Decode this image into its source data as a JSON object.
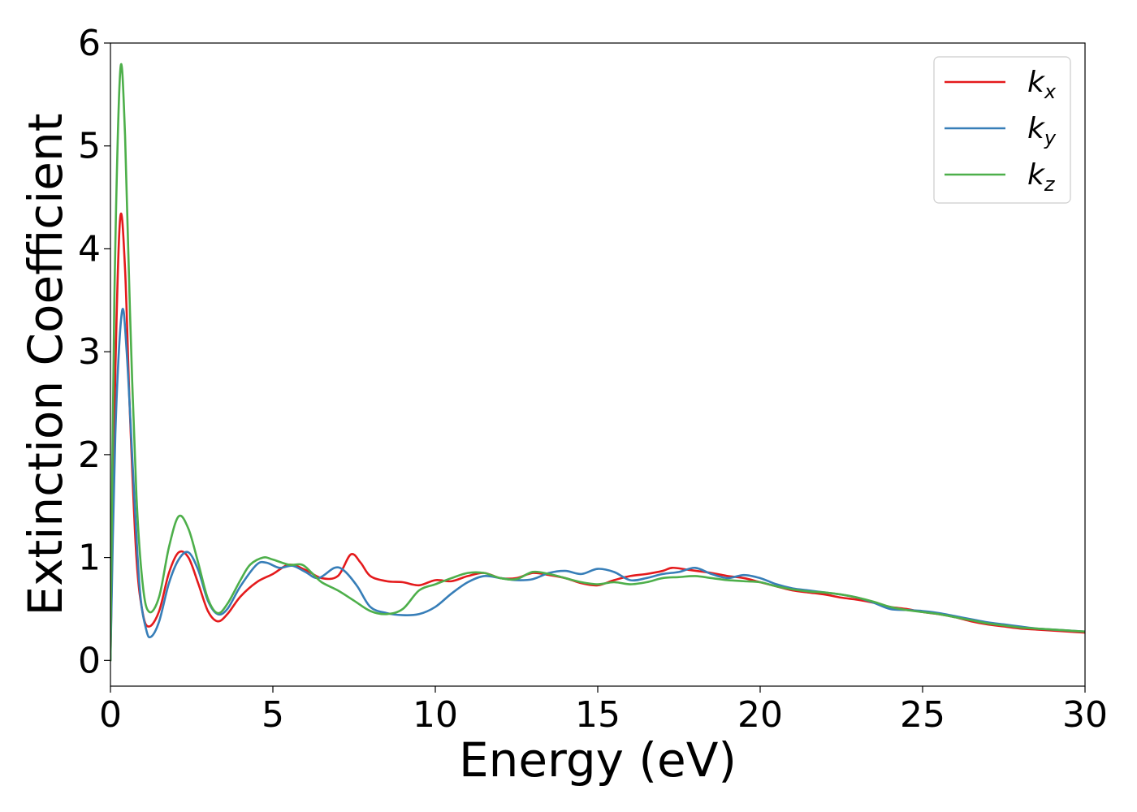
{
  "chart_data": {
    "type": "line",
    "title": "",
    "xlabel": "Energy (eV)",
    "ylabel": "Extinction Coefficient",
    "xlim": [
      0,
      30
    ],
    "ylim": [
      -0.25,
      6
    ],
    "xticks": [
      0,
      5,
      10,
      15,
      20,
      25,
      30
    ],
    "yticks": [
      0,
      1,
      2,
      3,
      4,
      5,
      6
    ],
    "grid": false,
    "legend_position": "top-right",
    "series": [
      {
        "name": "k_x",
        "label_base": "k",
        "label_sub": "x",
        "color": "#e41a1c",
        "points": [
          [
            0,
            0
          ],
          [
            0.15,
            2.8
          ],
          [
            0.3,
            4.3
          ],
          [
            0.45,
            3.8
          ],
          [
            0.6,
            2.4
          ],
          [
            0.8,
            1.0
          ],
          [
            1.0,
            0.45
          ],
          [
            1.2,
            0.33
          ],
          [
            1.5,
            0.48
          ],
          [
            1.8,
            0.85
          ],
          [
            2.1,
            1.05
          ],
          [
            2.4,
            1.0
          ],
          [
            2.7,
            0.75
          ],
          [
            3.0,
            0.48
          ],
          [
            3.3,
            0.38
          ],
          [
            3.6,
            0.45
          ],
          [
            4.0,
            0.62
          ],
          [
            4.5,
            0.76
          ],
          [
            5.0,
            0.84
          ],
          [
            5.5,
            0.93
          ],
          [
            6.0,
            0.88
          ],
          [
            6.5,
            0.8
          ],
          [
            7.0,
            0.82
          ],
          [
            7.4,
            1.03
          ],
          [
            7.7,
            0.95
          ],
          [
            8.0,
            0.82
          ],
          [
            8.5,
            0.77
          ],
          [
            9.0,
            0.76
          ],
          [
            9.5,
            0.73
          ],
          [
            10.0,
            0.78
          ],
          [
            10.5,
            0.77
          ],
          [
            11.0,
            0.82
          ],
          [
            11.5,
            0.85
          ],
          [
            12.0,
            0.8
          ],
          [
            12.5,
            0.8
          ],
          [
            13.0,
            0.85
          ],
          [
            13.5,
            0.83
          ],
          [
            14.0,
            0.8
          ],
          [
            14.5,
            0.75
          ],
          [
            15.0,
            0.73
          ],
          [
            15.5,
            0.78
          ],
          [
            16.0,
            0.82
          ],
          [
            16.5,
            0.84
          ],
          [
            17.0,
            0.87
          ],
          [
            17.3,
            0.9
          ],
          [
            17.8,
            0.88
          ],
          [
            18.5,
            0.85
          ],
          [
            19.0,
            0.82
          ],
          [
            19.5,
            0.8
          ],
          [
            20.0,
            0.76
          ],
          [
            20.5,
            0.72
          ],
          [
            21.0,
            0.68
          ],
          [
            21.5,
            0.66
          ],
          [
            22.0,
            0.64
          ],
          [
            22.5,
            0.61
          ],
          [
            23.0,
            0.59
          ],
          [
            23.5,
            0.56
          ],
          [
            24.0,
            0.52
          ],
          [
            24.5,
            0.5
          ],
          [
            25.0,
            0.47
          ],
          [
            25.5,
            0.45
          ],
          [
            26.0,
            0.42
          ],
          [
            26.5,
            0.38
          ],
          [
            27.0,
            0.35
          ],
          [
            27.5,
            0.33
          ],
          [
            28.0,
            0.31
          ],
          [
            28.5,
            0.3
          ],
          [
            29.0,
            0.29
          ],
          [
            29.5,
            0.28
          ],
          [
            30.0,
            0.27
          ]
        ]
      },
      {
        "name": "k_y",
        "label_base": "k",
        "label_sub": "y",
        "color": "#377eb8",
        "points": [
          [
            0,
            0
          ],
          [
            0.15,
            2.2
          ],
          [
            0.35,
            3.38
          ],
          [
            0.5,
            3.0
          ],
          [
            0.7,
            1.8
          ],
          [
            0.9,
            0.7
          ],
          [
            1.1,
            0.3
          ],
          [
            1.25,
            0.23
          ],
          [
            1.5,
            0.38
          ],
          [
            1.8,
            0.75
          ],
          [
            2.1,
            0.98
          ],
          [
            2.4,
            1.05
          ],
          [
            2.7,
            0.88
          ],
          [
            3.0,
            0.58
          ],
          [
            3.3,
            0.45
          ],
          [
            3.6,
            0.5
          ],
          [
            4.0,
            0.72
          ],
          [
            4.5,
            0.93
          ],
          [
            4.8,
            0.95
          ],
          [
            5.2,
            0.9
          ],
          [
            5.6,
            0.92
          ],
          [
            6.0,
            0.86
          ],
          [
            6.4,
            0.8
          ],
          [
            6.9,
            0.9
          ],
          [
            7.2,
            0.87
          ],
          [
            7.6,
            0.72
          ],
          [
            8.0,
            0.52
          ],
          [
            8.5,
            0.46
          ],
          [
            9.0,
            0.44
          ],
          [
            9.5,
            0.45
          ],
          [
            10.0,
            0.52
          ],
          [
            10.5,
            0.65
          ],
          [
            11.0,
            0.76
          ],
          [
            11.5,
            0.82
          ],
          [
            12.0,
            0.8
          ],
          [
            12.5,
            0.78
          ],
          [
            13.0,
            0.79
          ],
          [
            13.5,
            0.85
          ],
          [
            14.0,
            0.87
          ],
          [
            14.5,
            0.84
          ],
          [
            15.0,
            0.89
          ],
          [
            15.5,
            0.86
          ],
          [
            16.0,
            0.78
          ],
          [
            16.5,
            0.8
          ],
          [
            17.0,
            0.84
          ],
          [
            17.5,
            0.86
          ],
          [
            18.0,
            0.9
          ],
          [
            18.5,
            0.84
          ],
          [
            19.0,
            0.8
          ],
          [
            19.5,
            0.83
          ],
          [
            20.0,
            0.8
          ],
          [
            20.5,
            0.74
          ],
          [
            21.0,
            0.7
          ],
          [
            21.5,
            0.68
          ],
          [
            22.0,
            0.66
          ],
          [
            22.5,
            0.64
          ],
          [
            23.0,
            0.61
          ],
          [
            23.5,
            0.56
          ],
          [
            24.0,
            0.5
          ],
          [
            24.5,
            0.49
          ],
          [
            25.0,
            0.48
          ],
          [
            25.5,
            0.46
          ],
          [
            26.0,
            0.43
          ],
          [
            26.5,
            0.4
          ],
          [
            27.0,
            0.37
          ],
          [
            27.5,
            0.35
          ],
          [
            28.0,
            0.33
          ],
          [
            28.5,
            0.31
          ],
          [
            29.0,
            0.3
          ],
          [
            29.5,
            0.29
          ],
          [
            30.0,
            0.28
          ]
        ]
      },
      {
        "name": "k_z",
        "label_base": "k",
        "label_sub": "z",
        "color": "#4daf4a",
        "points": [
          [
            0,
            0
          ],
          [
            0.12,
            3.5
          ],
          [
            0.3,
            5.72
          ],
          [
            0.45,
            5.1
          ],
          [
            0.6,
            3.4
          ],
          [
            0.8,
            1.6
          ],
          [
            1.0,
            0.72
          ],
          [
            1.2,
            0.47
          ],
          [
            1.5,
            0.62
          ],
          [
            1.8,
            1.1
          ],
          [
            2.1,
            1.4
          ],
          [
            2.4,
            1.28
          ],
          [
            2.7,
            0.95
          ],
          [
            3.0,
            0.6
          ],
          [
            3.3,
            0.46
          ],
          [
            3.6,
            0.55
          ],
          [
            4.0,
            0.78
          ],
          [
            4.3,
            0.93
          ],
          [
            4.7,
            1.0
          ],
          [
            5.0,
            0.98
          ],
          [
            5.5,
            0.93
          ],
          [
            5.9,
            0.93
          ],
          [
            6.2,
            0.85
          ],
          [
            6.5,
            0.76
          ],
          [
            7.0,
            0.68
          ],
          [
            7.5,
            0.58
          ],
          [
            8.0,
            0.48
          ],
          [
            8.5,
            0.45
          ],
          [
            9.0,
            0.5
          ],
          [
            9.5,
            0.68
          ],
          [
            10.0,
            0.74
          ],
          [
            10.5,
            0.8
          ],
          [
            11.0,
            0.85
          ],
          [
            11.5,
            0.85
          ],
          [
            12.0,
            0.8
          ],
          [
            12.5,
            0.79
          ],
          [
            13.0,
            0.86
          ],
          [
            13.5,
            0.84
          ],
          [
            14.0,
            0.8
          ],
          [
            14.5,
            0.76
          ],
          [
            15.0,
            0.74
          ],
          [
            15.5,
            0.76
          ],
          [
            16.0,
            0.74
          ],
          [
            16.5,
            0.76
          ],
          [
            17.0,
            0.8
          ],
          [
            17.5,
            0.81
          ],
          [
            18.0,
            0.82
          ],
          [
            18.5,
            0.8
          ],
          [
            19.0,
            0.78
          ],
          [
            19.5,
            0.77
          ],
          [
            20.0,
            0.76
          ],
          [
            20.5,
            0.72
          ],
          [
            21.0,
            0.69
          ],
          [
            21.5,
            0.67
          ],
          [
            22.0,
            0.66
          ],
          [
            22.5,
            0.64
          ],
          [
            23.0,
            0.61
          ],
          [
            23.5,
            0.57
          ],
          [
            24.0,
            0.52
          ],
          [
            24.5,
            0.49
          ],
          [
            25.0,
            0.47
          ],
          [
            25.5,
            0.45
          ],
          [
            26.0,
            0.42
          ],
          [
            26.5,
            0.39
          ],
          [
            27.0,
            0.36
          ],
          [
            27.5,
            0.34
          ],
          [
            28.0,
            0.32
          ],
          [
            28.5,
            0.31
          ],
          [
            29.0,
            0.3
          ],
          [
            29.5,
            0.29
          ],
          [
            30.0,
            0.28
          ]
        ]
      }
    ]
  }
}
